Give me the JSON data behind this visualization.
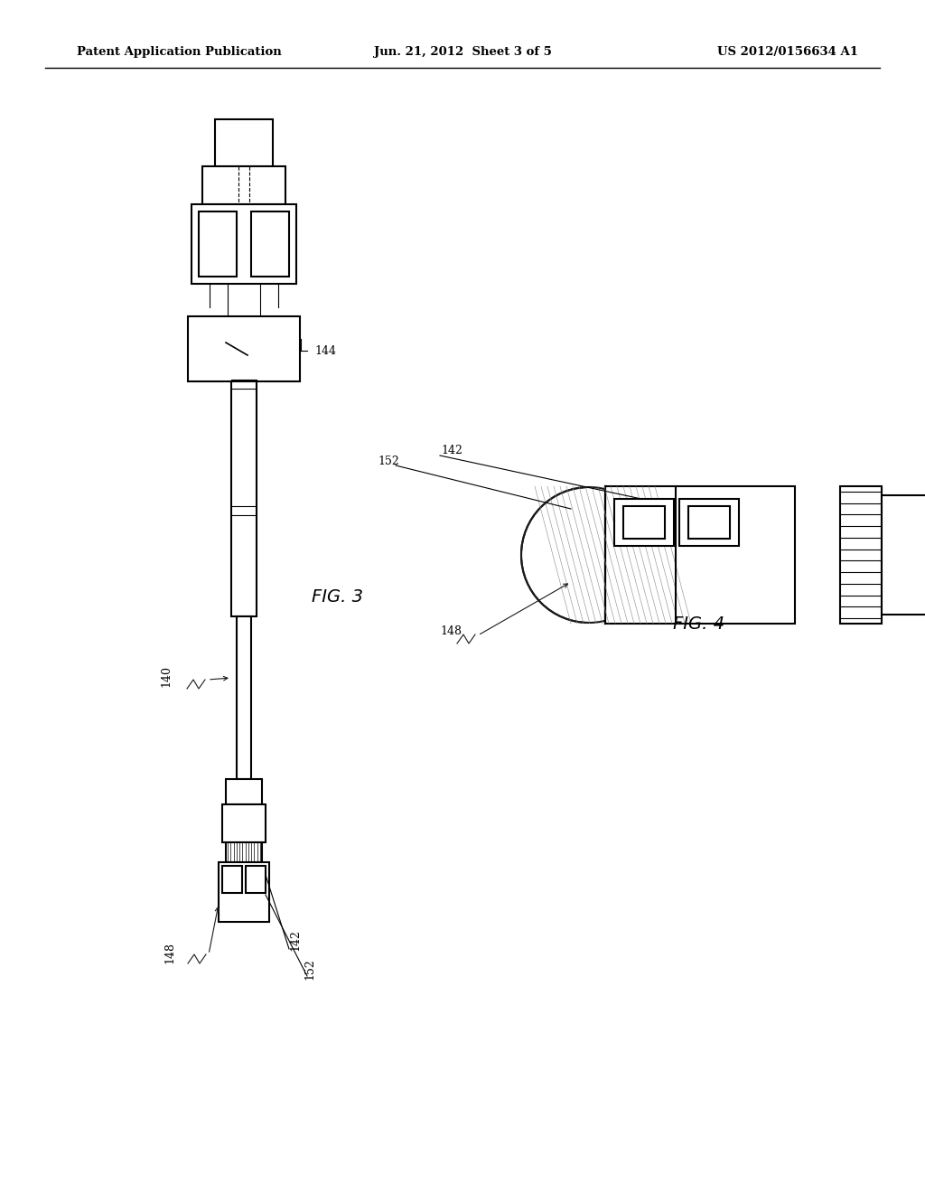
{
  "bg_color": "#ffffff",
  "line_color": "#1a1a1a",
  "header_left": "Patent Application Publication",
  "header_center": "Jun. 21, 2012  Sheet 3 of 5",
  "header_right": "US 2012/0156634 A1",
  "fig3_label": "FIG. 3",
  "fig4_label": "FIG. 4"
}
